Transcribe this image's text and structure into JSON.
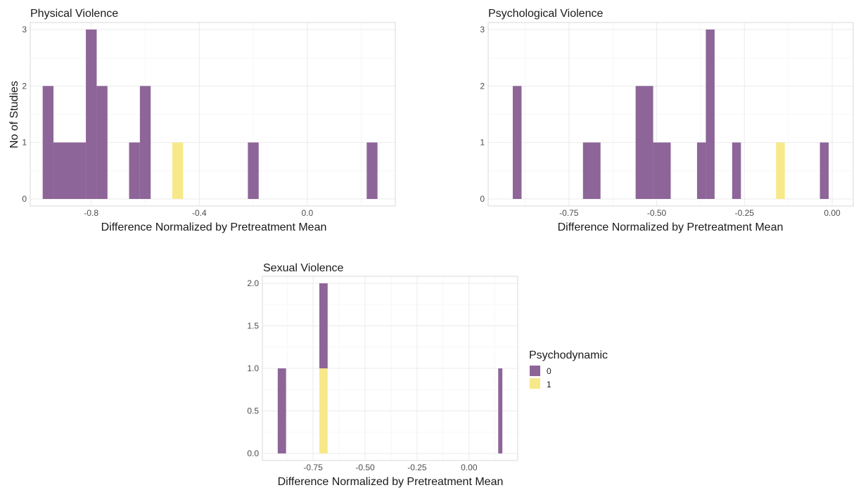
{
  "colors": {
    "group0": "#8e6598",
    "group1": "#f7e98a"
  },
  "legend": {
    "title": "Psychodynamic",
    "items": [
      {
        "label": "0",
        "color": "#8e6598"
      },
      {
        "label": "1",
        "color": "#f7e98a"
      }
    ]
  },
  "chart_data": [
    {
      "type": "bar",
      "title": "Physical Violence",
      "xlabel": "Difference Normalized by Pretreatment Mean",
      "ylabel": "No of Studies",
      "xticks": [
        -0.8,
        -0.4,
        0.0
      ],
      "xtick_labels": [
        "-0.8",
        "-0.4",
        "0.0"
      ],
      "yticks": [
        0,
        1,
        2,
        3
      ],
      "ytick_labels": [
        "0",
        "1",
        "2",
        "3"
      ],
      "xlim": [
        -1.0,
        0.3
      ],
      "ylim": [
        0,
        3
      ],
      "bin_width": 0.04,
      "grid": true,
      "series": [
        {
          "name": "0",
          "bins": [
            {
              "x0": -0.98,
              "x1": -0.94,
              "count": 2
            },
            {
              "x0": -0.94,
              "x1": -0.82,
              "count": 1
            },
            {
              "x0": -0.82,
              "x1": -0.78,
              "count": 3
            },
            {
              "x0": -0.78,
              "x1": -0.74,
              "count": 2
            },
            {
              "x0": -0.66,
              "x1": -0.62,
              "count": 1
            },
            {
              "x0": -0.62,
              "x1": -0.58,
              "count": 2
            },
            {
              "x0": -0.22,
              "x1": -0.18,
              "count": 1
            },
            {
              "x0": 0.22,
              "x1": 0.26,
              "count": 1
            }
          ]
        },
        {
          "name": "1",
          "bins": [
            {
              "x0": -0.5,
              "x1": -0.46,
              "count": 1
            }
          ]
        }
      ]
    },
    {
      "type": "bar",
      "title": "Psychological Violence",
      "xlabel": "Difference Normalized by Pretreatment Mean",
      "ylabel": "",
      "xticks": [
        -0.75,
        -0.5,
        -0.25,
        0.0
      ],
      "xtick_labels": [
        "-0.75",
        "-0.50",
        "-0.25",
        "0.00"
      ],
      "yticks": [
        0,
        1,
        2,
        3
      ],
      "ytick_labels": [
        "0",
        "1",
        "2",
        "3"
      ],
      "xlim": [
        -0.96,
        0.04
      ],
      "ylim": [
        0,
        3
      ],
      "bin_width": 0.025,
      "grid": true,
      "series": [
        {
          "name": "0",
          "bins": [
            {
              "x0": -0.91,
              "x1": -0.885,
              "count": 2
            },
            {
              "x0": -0.71,
              "x1": -0.66,
              "count": 1
            },
            {
              "x0": -0.56,
              "x1": -0.51,
              "count": 2
            },
            {
              "x0": -0.51,
              "x1": -0.46,
              "count": 1
            },
            {
              "x0": -0.385,
              "x1": -0.36,
              "count": 1
            },
            {
              "x0": -0.36,
              "x1": -0.335,
              "count": 3
            },
            {
              "x0": -0.285,
              "x1": -0.26,
              "count": 1
            },
            {
              "x0": -0.035,
              "x1": -0.01,
              "count": 1
            }
          ]
        },
        {
          "name": "1",
          "bins": [
            {
              "x0": -0.16,
              "x1": -0.135,
              "count": 1
            }
          ]
        }
      ]
    },
    {
      "type": "bar",
      "title": "Sexual Violence",
      "xlabel": "Difference Normalized by Pretreatment Mean",
      "ylabel": "",
      "xticks": [
        -0.75,
        -0.5,
        -0.25,
        0.0
      ],
      "xtick_labels": [
        "-0.75",
        "-0.50",
        "-0.25",
        "0.00"
      ],
      "yticks": [
        0,
        0.5,
        1,
        1.5,
        2
      ],
      "ytick_labels": [
        "0.0",
        "0.5",
        "1.0",
        "1.5",
        "2.0"
      ],
      "xlim": [
        -0.96,
        0.2
      ],
      "ylim": [
        0,
        2
      ],
      "bin_width": 0.04,
      "grid": true,
      "series": [
        {
          "name": "0",
          "bins": [
            {
              "x0": -0.92,
              "x1": -0.88,
              "count": 1
            },
            {
              "x0": -0.72,
              "x1": -0.68,
              "count": 1,
              "stacked_on": 1
            },
            {
              "x0": 0.14,
              "x1": 0.16,
              "count": 1
            }
          ]
        },
        {
          "name": "1",
          "bins": [
            {
              "x0": -0.72,
              "x1": -0.68,
              "count": 1
            }
          ]
        }
      ]
    }
  ]
}
